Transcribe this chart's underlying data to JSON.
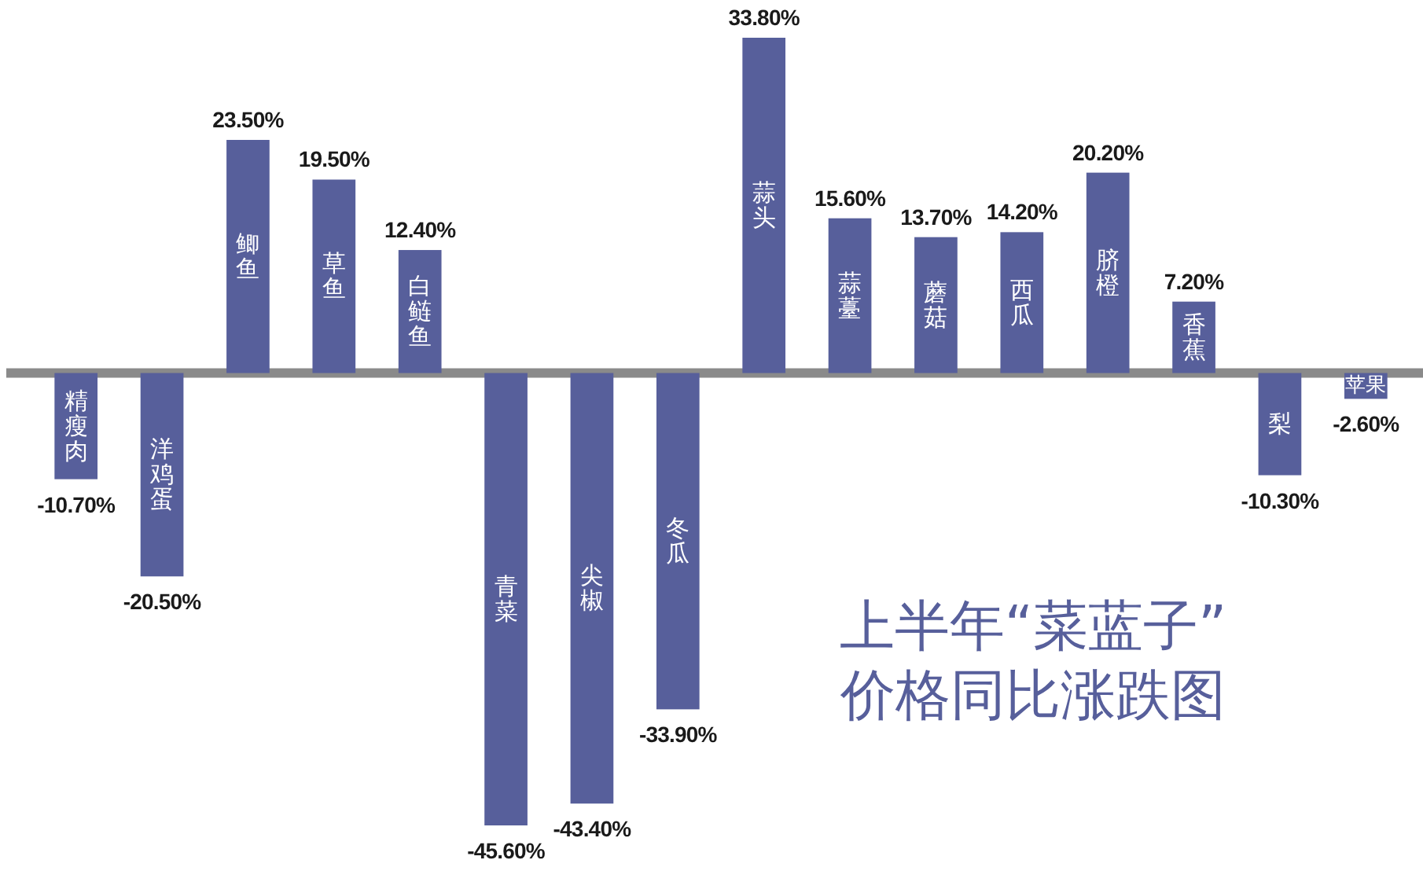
{
  "chart_data": {
    "type": "bar",
    "title": "上半年“菜蓝子”\n价格同比涨跌图",
    "categories": [
      "精瘦肉",
      "洋鸡蛋",
      "鲫鱼",
      "草鱼",
      "白鲢鱼",
      "青菜",
      "尖椒",
      "冬瓜",
      "蒜头",
      "蒜薹",
      "蘑菇",
      "西瓜",
      "脐橙",
      "香蕉",
      "梨",
      "苹果"
    ],
    "values": [
      -10.7,
      -20.5,
      23.5,
      19.5,
      12.4,
      -45.6,
      -43.4,
      -33.9,
      33.8,
      15.6,
      13.7,
      14.2,
      20.2,
      7.2,
      -10.3,
      -2.6
    ],
    "value_labels": [
      "-10.70%",
      "-20.50%",
      "23.50%",
      "19.50%",
      "12.40%",
      "-45.60%",
      "-43.40%",
      "-33.90%",
      "33.80%",
      "15.60%",
      "13.70%",
      "14.20%",
      "20.20%",
      "7.20%",
      "-10.30%",
      "-2.60%"
    ],
    "color": "#575f9b"
  }
}
